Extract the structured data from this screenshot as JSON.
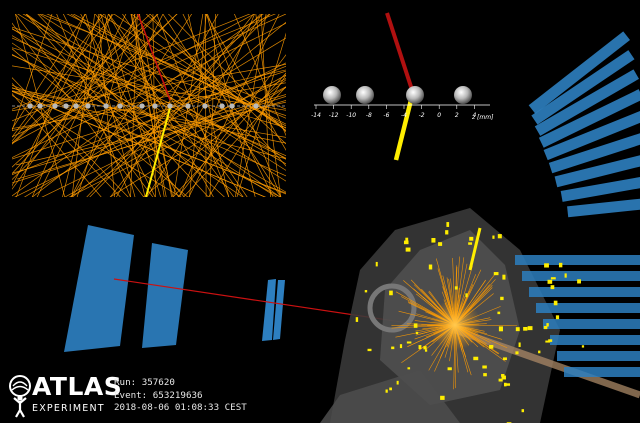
{
  "event": {
    "run_label": "Run:",
    "run_value": "357620",
    "event_label": "Event:",
    "event_value": "653219636",
    "timestamp": "2018-08-06 01:08:33 CEST"
  },
  "logo": {
    "word": "ATLAS",
    "sub": "EXPERIMENT"
  },
  "vertex_axis": {
    "ticks": [
      "-14",
      "-12",
      "-10",
      "-8",
      "-6",
      "-4",
      "-2",
      "0",
      "2",
      "4"
    ],
    "unit_label": "z [mm]"
  },
  "colors": {
    "track": "#ff9c00",
    "muon": "#cc1111",
    "jet": "#ffee00",
    "muon_chamber": "#2d7fc0",
    "background": "#000000"
  }
}
